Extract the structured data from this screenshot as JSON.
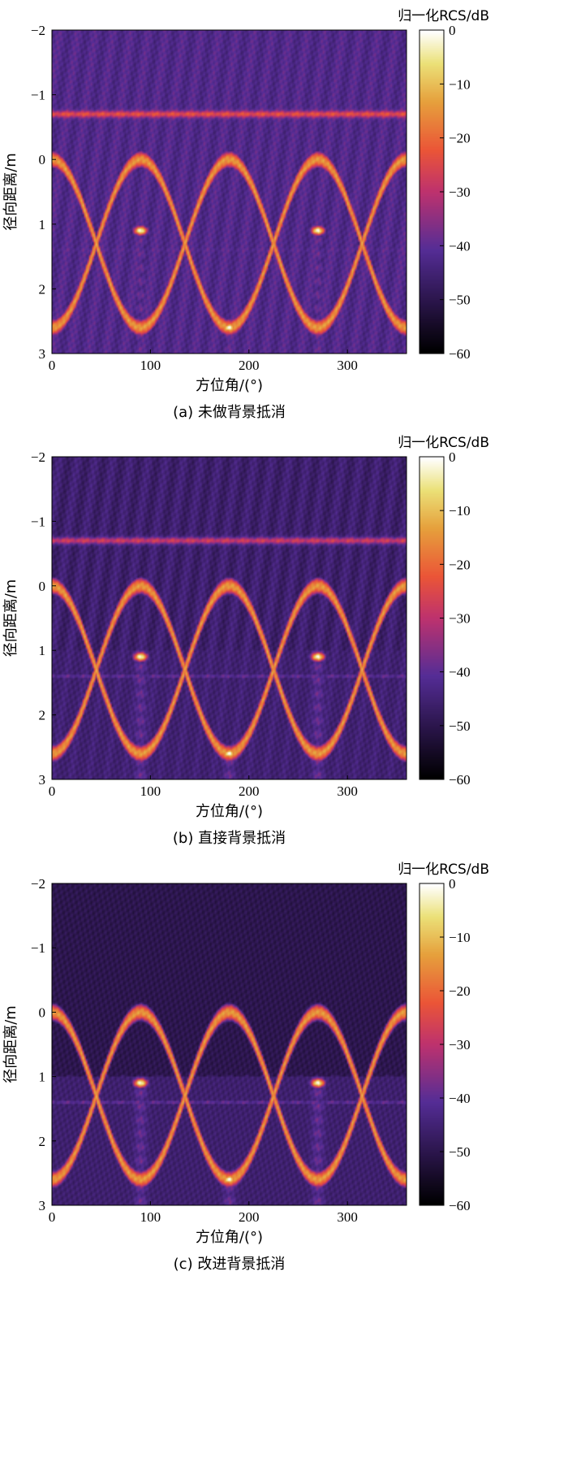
{
  "chart_data": [
    {
      "type": "heatmap",
      "caption": "(a) 未做背景抵消",
      "xlabel": "方位角/(°)",
      "ylabel": "径向距离/m",
      "colorbar_label": "归一化RCS/dB",
      "xlim": [
        0,
        360
      ],
      "ylim": [
        -2,
        3
      ],
      "y_inverted": true,
      "xticks": [
        0,
        100,
        200,
        300
      ],
      "yticks": [
        -2,
        -1,
        0,
        1,
        2,
        3
      ],
      "clim": [
        -60,
        0
      ],
      "cticks": [
        0,
        -10,
        -20,
        -30,
        -40,
        -50,
        -60
      ],
      "colormap": "black-purple-red-orange-yellow-white",
      "features": {
        "target_curve": {
          "center_range_m": 1.3,
          "amplitude_m": 1.3,
          "period_deg": 180,
          "phase_deg": 0,
          "peak_db": 0
        },
        "specular_points": [
          {
            "x": 90,
            "y": 1.1
          },
          {
            "x": 270,
            "y": 1.1
          },
          {
            "x": 180,
            "y": 2.6
          }
        ],
        "background_bands": [
          {
            "y": -0.7,
            "db": -22
          },
          {
            "y": -1.6,
            "db": -45
          },
          {
            "y": -1.2,
            "db": -48
          },
          {
            "y": -0.4,
            "db": -46
          },
          {
            "y": 1.4,
            "db": -38
          }
        ]
      }
    },
    {
      "type": "heatmap",
      "caption": "(b) 直接背景抵消",
      "xlabel": "方位角/(°)",
      "ylabel": "径向距离/m",
      "colorbar_label": "归一化RCS/dB",
      "xlim": [
        0,
        360
      ],
      "ylim": [
        -2,
        3
      ],
      "y_inverted": true,
      "xticks": [
        0,
        100,
        200,
        300
      ],
      "yticks": [
        -2,
        -1,
        0,
        1,
        2,
        3
      ],
      "clim": [
        -60,
        0
      ],
      "cticks": [
        0,
        -10,
        -20,
        -30,
        -40,
        -50,
        -60
      ],
      "colormap": "black-purple-red-orange-yellow-white",
      "features": {
        "target_curve": {
          "center_range_m": 1.3,
          "amplitude_m": 1.3,
          "period_deg": 180,
          "phase_deg": 0,
          "peak_db": 0
        },
        "specular_points": [
          {
            "x": 90,
            "y": 1.1
          },
          {
            "x": 270,
            "y": 1.1
          },
          {
            "x": 180,
            "y": 2.6
          }
        ],
        "background_bands": [
          {
            "y": -0.7,
            "db": -26
          },
          {
            "y": -1.3,
            "db": -44
          },
          {
            "y": -0.3,
            "db": -44
          },
          {
            "y": 1.4,
            "db": -38
          }
        ]
      }
    },
    {
      "type": "heatmap",
      "caption": "(c) 改进背景抵消",
      "xlabel": "方位角/(°)",
      "ylabel": "径向距离/m",
      "colorbar_label": "归一化RCS/dB",
      "xlim": [
        0,
        360
      ],
      "ylim": [
        -2,
        3
      ],
      "y_inverted": true,
      "xticks": [
        0,
        100,
        200,
        300
      ],
      "yticks": [
        -2,
        -1,
        0,
        1,
        2,
        3
      ],
      "clim": [
        -60,
        0
      ],
      "cticks": [
        0,
        -10,
        -20,
        -30,
        -40,
        -50,
        -60
      ],
      "colormap": "black-purple-red-orange-yellow-white",
      "features": {
        "target_curve": {
          "center_range_m": 1.3,
          "amplitude_m": 1.3,
          "period_deg": 180,
          "phase_deg": 0,
          "peak_db": 0
        },
        "specular_points": [
          {
            "x": 90,
            "y": 1.1
          },
          {
            "x": 270,
            "y": 1.1
          },
          {
            "x": 180,
            "y": 2.6
          }
        ],
        "background_bands": [
          {
            "y": 1.0,
            "db": -46
          },
          {
            "y": 1.4,
            "db": -38
          }
        ]
      }
    }
  ]
}
